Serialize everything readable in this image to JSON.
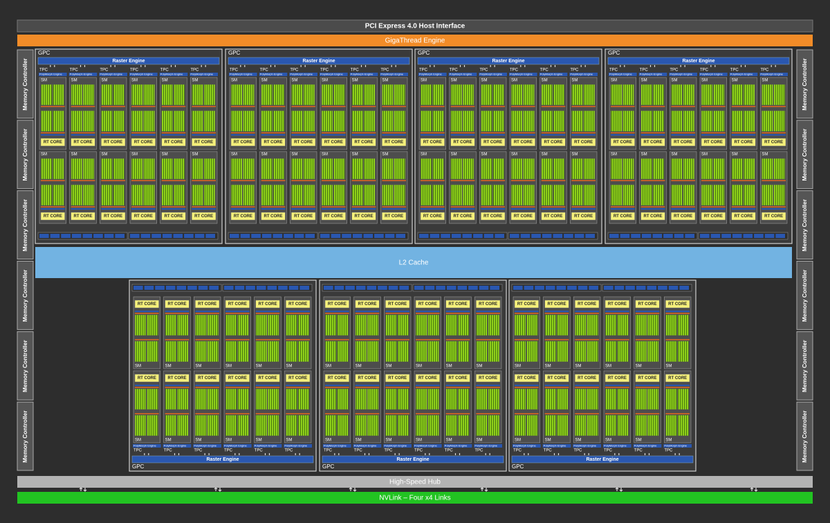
{
  "host_interface": "PCI Express 4.0 Host Interface",
  "gigathread_engine": "GigaThread Engine",
  "memory_controllers": [
    "Memory Controller",
    "Memory Controller",
    "Memory Controller",
    "Memory Controller",
    "Memory Controller",
    "Memory Controller",
    "Memory Controller",
    "Memory Controller",
    "Memory Controller",
    "Memory Controller",
    "Memory Controller",
    "Memory Controller"
  ],
  "gpc": {
    "label": "GPC",
    "raster_engine": "Raster Engine",
    "tpc": {
      "label": "TPC",
      "polymorph_engine": "PolyMorph Engine",
      "sm": {
        "label": "SM",
        "rt_core": "RT CORE"
      }
    }
  },
  "l2_cache": "L2 Cache",
  "high_speed_hub": "High-Speed Hub",
  "nvlink": "NVLink – Four x4 Links"
}
